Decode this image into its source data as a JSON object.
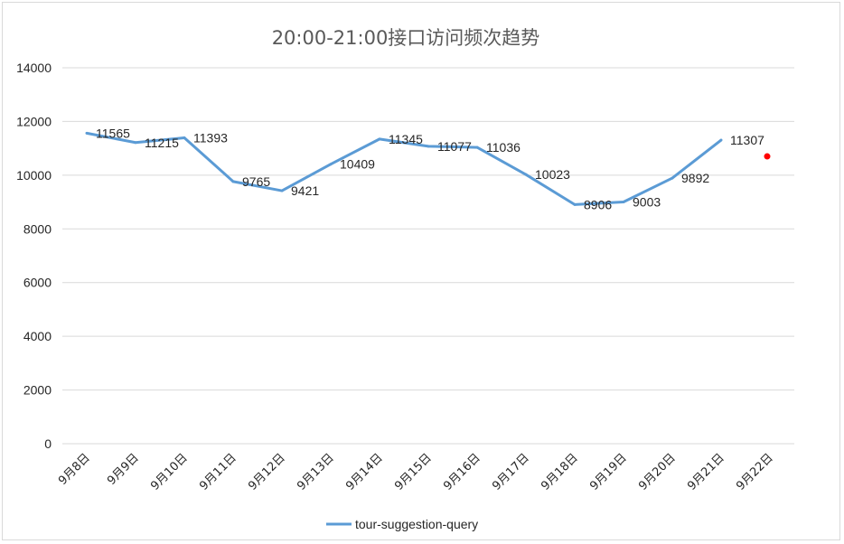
{
  "chart_data": {
    "type": "line",
    "title": "20:00-21:00接口访问频次趋势",
    "categories": [
      "9月8日",
      "9月9日",
      "9月10日",
      "9月11日",
      "9月12日",
      "9月13日",
      "9月14日",
      "9月15日",
      "9月16日",
      "9月17日",
      "9月18日",
      "9月19日",
      "9月20日",
      "9月21日",
      "9月22日"
    ],
    "series": [
      {
        "name": "tour-suggestion-query",
        "color": "#5b9bd5",
        "values": [
          11565,
          11215,
          11393,
          9765,
          9421,
          10409,
          11345,
          11077,
          11036,
          10023,
          8906,
          9003,
          9892,
          11307,
          null
        ],
        "labels": [
          "11565",
          "11215",
          "11393",
          "9765",
          "9421",
          "10409",
          "11345",
          "11077",
          "11036",
          "10023",
          "8906",
          "9003",
          "9892",
          "11307",
          ""
        ]
      }
    ],
    "extra_points": [
      {
        "category": "9月22日",
        "value": 10700,
        "color": "#ff0000"
      }
    ],
    "ylim": [
      0,
      14000
    ],
    "yticks": [
      0,
      2000,
      4000,
      6000,
      8000,
      10000,
      12000,
      14000
    ],
    "ytick_labels": [
      "0",
      "2000",
      "4000",
      "6000",
      "8000",
      "10000",
      "12000",
      "14000"
    ],
    "grid": true,
    "legend_position": "bottom"
  }
}
